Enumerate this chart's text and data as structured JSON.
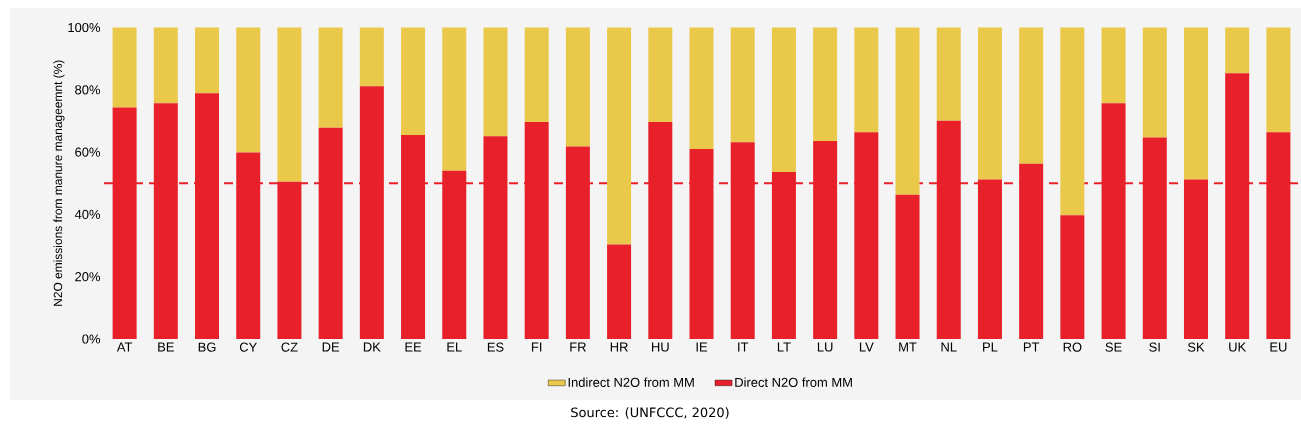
{
  "chart_data": {
    "type": "bar",
    "stacked": true,
    "ylabel": "N2O emissions from manure manageemnt (%)",
    "categories": [
      "AT",
      "BE",
      "BG",
      "CY",
      "CZ",
      "DE",
      "DK",
      "EE",
      "EL",
      "ES",
      "FI",
      "FR",
      "HR",
      "HU",
      "IE",
      "IT",
      "LT",
      "LU",
      "LV",
      "MT",
      "NL",
      "PL",
      "PT",
      "RO",
      "SE",
      "SI",
      "SK",
      "UK",
      "EU"
    ],
    "series": [
      {
        "name": "Direct N2O from MM",
        "color": "#e8202a",
        "values": [
          74.3,
          75.7,
          78.9,
          59.9,
          50.5,
          67.8,
          81.1,
          65.5,
          54.0,
          65.1,
          69.7,
          61.8,
          30.3,
          69.7,
          61.0,
          63.2,
          53.6,
          63.6,
          66.4,
          46.3,
          70.1,
          51.2,
          56.3,
          39.7,
          75.7,
          64.7,
          51.2,
          85.3,
          66.4
        ]
      },
      {
        "name": "Indirect N2O from MM",
        "color": "#eac84a",
        "values": [
          25.7,
          24.3,
          21.1,
          40.1,
          49.5,
          32.2,
          18.9,
          34.5,
          46.0,
          34.9,
          30.3,
          38.2,
          69.7,
          30.3,
          39.0,
          36.8,
          46.4,
          36.4,
          33.6,
          53.7,
          29.9,
          48.8,
          43.7,
          60.3,
          24.3,
          35.3,
          48.8,
          14.7,
          33.6
        ]
      }
    ],
    "ylim": [
      0,
      100
    ],
    "yticks": [
      {
        "value": 0,
        "label": "0%"
      },
      {
        "value": 20,
        "label": "20%"
      },
      {
        "value": 40,
        "label": "40%"
      },
      {
        "value": 60,
        "label": "60%"
      },
      {
        "value": 80,
        "label": "80%"
      },
      {
        "value": 100,
        "label": "100%"
      }
    ],
    "ref_lines": [
      {
        "axis": "y",
        "value": 50,
        "color": "#e8202a",
        "line_style": "dashed"
      }
    ],
    "legend": "bottom",
    "annotations": [
      "Source: (UNFCCC, 2020)"
    ]
  }
}
